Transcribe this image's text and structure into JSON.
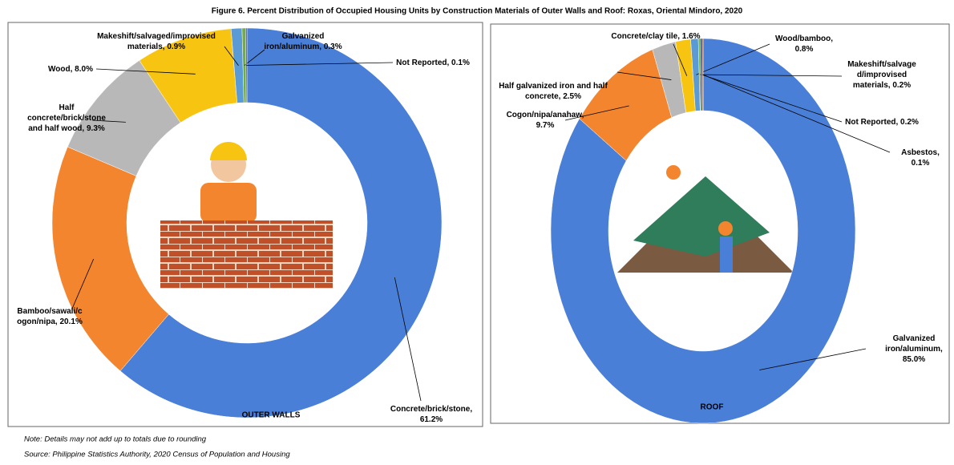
{
  "title": "Figure 6. Percent Distribution of Occupied Housing Units by Construction Materials of Outer Walls and Roof: Roxas, Oriental Mindoro, 2020",
  "note": "Note:  Details may not add up to totals due to rounding",
  "source": "Source: Philippine Statistics Authority, 2020 Census of Population and Housing",
  "chart_data": [
    {
      "type": "donut",
      "title": "OUTER WALLS",
      "labels": [
        [
          "Concrete/brick/stone,",
          "61.2%"
        ],
        [
          "Bamboo/sawali/c",
          "ogon/nipa, 20.1%"
        ],
        [
          "Half",
          "concrete/brick/stone",
          "and half wood, 9.3%"
        ],
        [
          "Wood, 8.0%"
        ],
        [
          "Makeshift/salvaged/improvised",
          "materials, 0.9%"
        ],
        [
          "Galvanized",
          "iron/aluminum,  0.3%"
        ],
        [
          "Not Reported,  0.1%"
        ]
      ],
      "values": [
        61.2,
        20.1,
        9.3,
        8.0,
        0.9,
        0.3,
        0.1
      ],
      "colors": [
        "#4a7fd8",
        "#f3852f",
        "#b8b8b8",
        "#f7c511",
        "#5b9bd5",
        "#70ad47",
        "#264478"
      ]
    },
    {
      "type": "donut",
      "title": "ROOF",
      "labels": [
        [
          "Galvanized",
          "iron/aluminum,",
          "85.0%"
        ],
        [
          "Cogon/nipa/anahaw,",
          "9.7%"
        ],
        [
          "Half galvanized  iron and half",
          "concrete, 2.5%"
        ],
        [
          "Concrete/clay tile, 1.6%"
        ],
        [
          "Wood/bamboo,",
          "0.8%"
        ],
        [
          "Makeshift/salvage",
          "d/improvised",
          "materials, 0.2%"
        ],
        [
          "Not Reported, 0.2%"
        ],
        [
          "Asbestos,",
          "0.1%"
        ]
      ],
      "values": [
        85.0,
        9.7,
        2.5,
        1.6,
        0.8,
        0.2,
        0.2,
        0.1
      ],
      "colors": [
        "#4a7fd8",
        "#f3852f",
        "#b8b8b8",
        "#f7c511",
        "#5b9bd5",
        "#70ad47",
        "#264478",
        "#9e480e"
      ]
    }
  ]
}
